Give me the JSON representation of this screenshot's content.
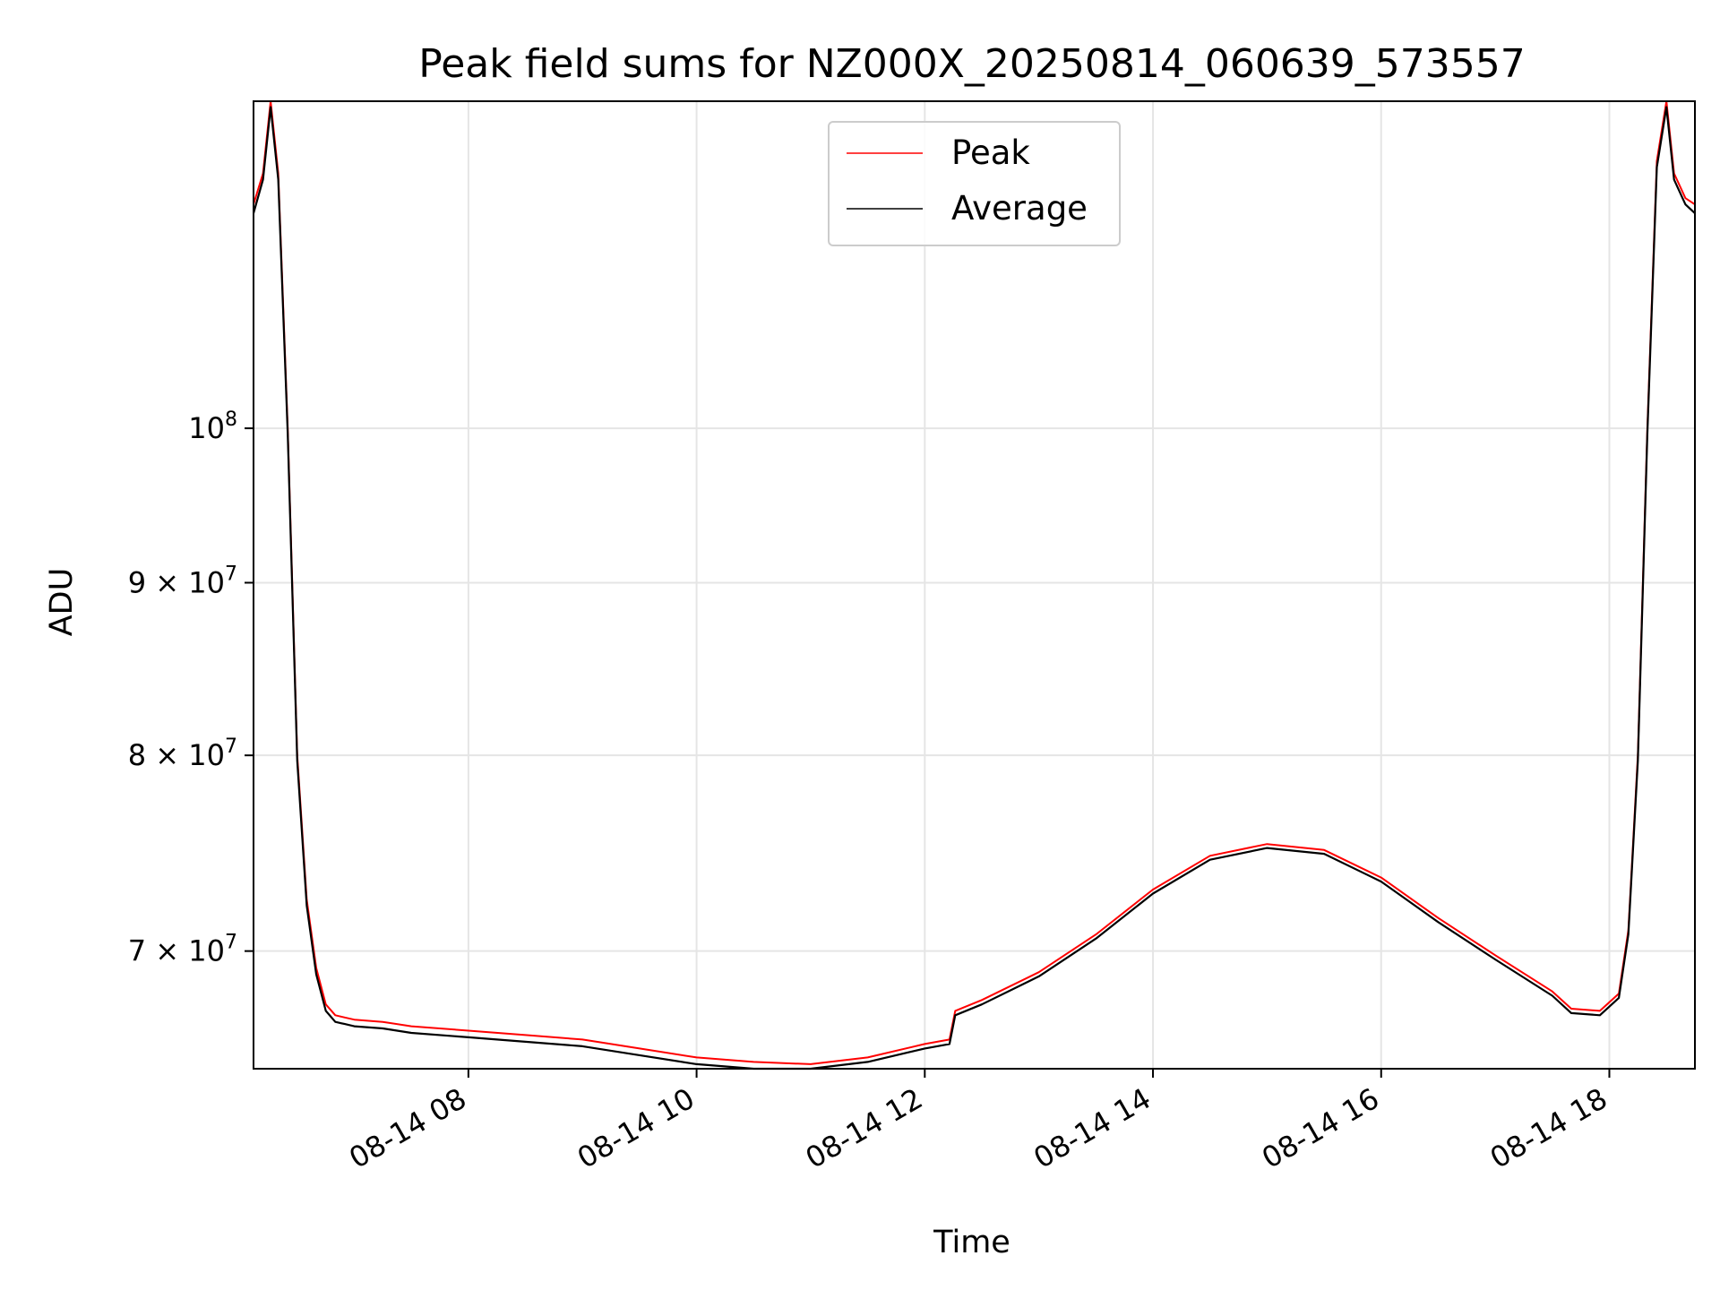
{
  "chart_data": {
    "type": "line",
    "title": "Peak field sums for NZ000X_20250814_060639_573557",
    "xlabel": "Time",
    "ylabel": "ADU",
    "yscale": "log",
    "grid": true,
    "legend_position": "upper center",
    "xlim": [
      "2025-08-14 06:07",
      "2025-08-14 18:45"
    ],
    "ylim": [
      64600000,
      125000000
    ],
    "x_ticks": [
      "2025-08-14 08:00",
      "2025-08-14 10:00",
      "2025-08-14 12:00",
      "2025-08-14 14:00",
      "2025-08-14 16:00",
      "2025-08-14 18:00"
    ],
    "x_tick_labels": [
      "08-14 08",
      "08-14 10",
      "08-14 12",
      "08-14 14",
      "08-14 16",
      "08-14 18"
    ],
    "y_ticks": [
      70000000,
      80000000,
      90000000,
      100000000
    ],
    "y_tick_labels": [
      {
        "mantissa": "7",
        "exponent": "7"
      },
      {
        "mantissa": "8",
        "exponent": "7"
      },
      {
        "mantissa": "9",
        "exponent": "7"
      },
      {
        "mantissa": "",
        "exponent": "8"
      }
    ],
    "colors": {
      "peak": "#ff0000",
      "average": "#000000",
      "grid": "#e5e5e5"
    },
    "series": [
      {
        "name": "Peak",
        "color": "#ff0000",
        "x": [
          "2025-08-14 06:07",
          "2025-08-14 06:12",
          "2025-08-14 06:16",
          "2025-08-14 06:20",
          "2025-08-14 06:25",
          "2025-08-14 06:30",
          "2025-08-14 06:35",
          "2025-08-14 06:40",
          "2025-08-14 06:45",
          "2025-08-14 06:50",
          "2025-08-14 06:55",
          "2025-08-14 07:00",
          "2025-08-14 07:15",
          "2025-08-14 07:30",
          "2025-08-14 08:00",
          "2025-08-14 08:30",
          "2025-08-14 09:00",
          "2025-08-14 09:30",
          "2025-08-14 10:00",
          "2025-08-14 10:30",
          "2025-08-14 11:00",
          "2025-08-14 11:30",
          "2025-08-14 12:00",
          "2025-08-14 12:13",
          "2025-08-14 12:16",
          "2025-08-14 12:30",
          "2025-08-14 13:00",
          "2025-08-14 13:30",
          "2025-08-14 14:00",
          "2025-08-14 14:30",
          "2025-08-14 15:00",
          "2025-08-14 15:30",
          "2025-08-14 16:00",
          "2025-08-14 16:30",
          "2025-08-14 17:00",
          "2025-08-14 17:30",
          "2025-08-14 17:40",
          "2025-08-14 17:55",
          "2025-08-14 18:05",
          "2025-08-14 18:10",
          "2025-08-14 18:15",
          "2025-08-14 18:20",
          "2025-08-14 18:25",
          "2025-08-14 18:30",
          "2025-08-14 18:34",
          "2025-08-14 18:40",
          "2025-08-14 18:45"
        ],
        "values": [
          116500000,
          119000000,
          125000000,
          119000000,
          100000000,
          80000000,
          72500000,
          69200000,
          67500000,
          67000000,
          66900000,
          66800000,
          66700000,
          66500000,
          66300000,
          66100000,
          65900000,
          65500000,
          65100000,
          64900000,
          64800000,
          65100000,
          65700000,
          65900000,
          67200000,
          67700000,
          69000000,
          70800000,
          73000000,
          74700000,
          75300000,
          75000000,
          73600000,
          71600000,
          69800000,
          68100000,
          67300000,
          67200000,
          68000000,
          71000000,
          80000000,
          100000000,
          120000000,
          125000000,
          119000000,
          117000000,
          116500000
        ]
      },
      {
        "name": "Average",
        "color": "#000000",
        "x": [
          "2025-08-14 06:07",
          "2025-08-14 06:12",
          "2025-08-14 06:16",
          "2025-08-14 06:20",
          "2025-08-14 06:25",
          "2025-08-14 06:30",
          "2025-08-14 06:35",
          "2025-08-14 06:40",
          "2025-08-14 06:45",
          "2025-08-14 06:50",
          "2025-08-14 06:55",
          "2025-08-14 07:00",
          "2025-08-14 07:15",
          "2025-08-14 07:30",
          "2025-08-14 08:00",
          "2025-08-14 08:30",
          "2025-08-14 09:00",
          "2025-08-14 09:30",
          "2025-08-14 10:00",
          "2025-08-14 10:30",
          "2025-08-14 11:00",
          "2025-08-14 11:30",
          "2025-08-14 12:00",
          "2025-08-14 12:13",
          "2025-08-14 12:16",
          "2025-08-14 12:30",
          "2025-08-14 13:00",
          "2025-08-14 13:30",
          "2025-08-14 14:00",
          "2025-08-14 14:30",
          "2025-08-14 15:00",
          "2025-08-14 15:30",
          "2025-08-14 16:00",
          "2025-08-14 16:30",
          "2025-08-14 17:00",
          "2025-08-14 17:30",
          "2025-08-14 17:40",
          "2025-08-14 17:55",
          "2025-08-14 18:05",
          "2025-08-14 18:10",
          "2025-08-14 18:15",
          "2025-08-14 18:20",
          "2025-08-14 18:25",
          "2025-08-14 18:30",
          "2025-08-14 18:34",
          "2025-08-14 18:40",
          "2025-08-14 18:45"
        ],
        "values": [
          115800000,
          118500000,
          124500000,
          118500000,
          99600000,
          79700000,
          72200000,
          68900000,
          67200000,
          66700000,
          66600000,
          66500000,
          66400000,
          66200000,
          66000000,
          65800000,
          65600000,
          65200000,
          64800000,
          64600000,
          64600000,
          64900000,
          65500000,
          65700000,
          67000000,
          67500000,
          68800000,
          70600000,
          72800000,
          74500000,
          75100000,
          74800000,
          73400000,
          71400000,
          69600000,
          67900000,
          67100000,
          67000000,
          67800000,
          70800000,
          79700000,
          99600000,
          119500000,
          124500000,
          118500000,
          116500000,
          115800000
        ]
      }
    ]
  }
}
